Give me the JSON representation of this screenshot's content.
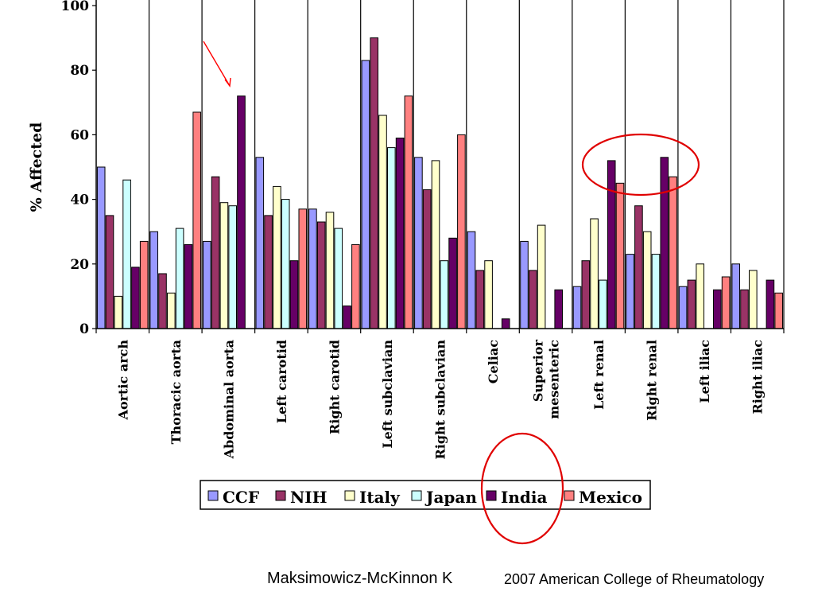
{
  "chart_data": {
    "type": "bar",
    "ylabel": "% Affected",
    "ylim": [
      0,
      100
    ],
    "yticks": [
      0,
      20,
      40,
      60,
      80,
      100
    ],
    "categories": [
      "Aortic arch",
      "Thoracic aorta",
      "Abdominal aorta",
      "Left carotid",
      "Right carotid",
      "Left subclavian",
      "Right subclavian",
      "Celiac",
      "Superior mesenteric",
      "Left renal",
      "Right renal",
      "Left iliac",
      "Right iliac"
    ],
    "category_lines": [
      [
        "Aortic arch"
      ],
      [
        "Thoracic aorta"
      ],
      [
        "Abdominal aorta"
      ],
      [
        "Left carotid"
      ],
      [
        "Right carotid"
      ],
      [
        "Left subclavian"
      ],
      [
        "Right subclavian"
      ],
      [
        "Celiac"
      ],
      [
        "Superior",
        "mesenteric"
      ],
      [
        "Left renal"
      ],
      [
        "Right renal"
      ],
      [
        "Left iliac"
      ],
      [
        "Right iliac"
      ]
    ],
    "series": [
      {
        "name": "CCF",
        "color": "#9999ff",
        "values": [
          50,
          30,
          27,
          53,
          37,
          83,
          53,
          30,
          27,
          13,
          23,
          13,
          20
        ]
      },
      {
        "name": "NIH",
        "color": "#993366",
        "values": [
          35,
          17,
          47,
          35,
          33,
          90,
          43,
          18,
          18,
          21,
          38,
          15,
          12
        ]
      },
      {
        "name": "Italy",
        "color": "#ffffcc",
        "values": [
          10,
          11,
          39,
          44,
          36,
          66,
          52,
          21,
          32,
          34,
          30,
          20,
          18
        ]
      },
      {
        "name": "Japan",
        "color": "#ccffff",
        "values": [
          46,
          31,
          38,
          40,
          31,
          56,
          21,
          0,
          0,
          15,
          23,
          0,
          0
        ]
      },
      {
        "name": "India",
        "color": "#660066",
        "values": [
          19,
          26,
          72,
          21,
          7,
          59,
          28,
          3,
          12,
          52,
          53,
          12,
          15
        ]
      },
      {
        "name": "Mexico",
        "color": "#ff8080",
        "values": [
          27,
          67,
          0,
          37,
          26,
          72,
          60,
          0,
          0,
          45,
          47,
          16,
          11
        ]
      }
    ],
    "grid": false,
    "legend_position": "bottom"
  },
  "annotations": {
    "arrow_color": "#ff0000",
    "ellipse_color": "#e00000"
  },
  "credits": {
    "author": "Maksimowicz-McKinnon K",
    "source": "2007 American College of Rheumatology"
  }
}
